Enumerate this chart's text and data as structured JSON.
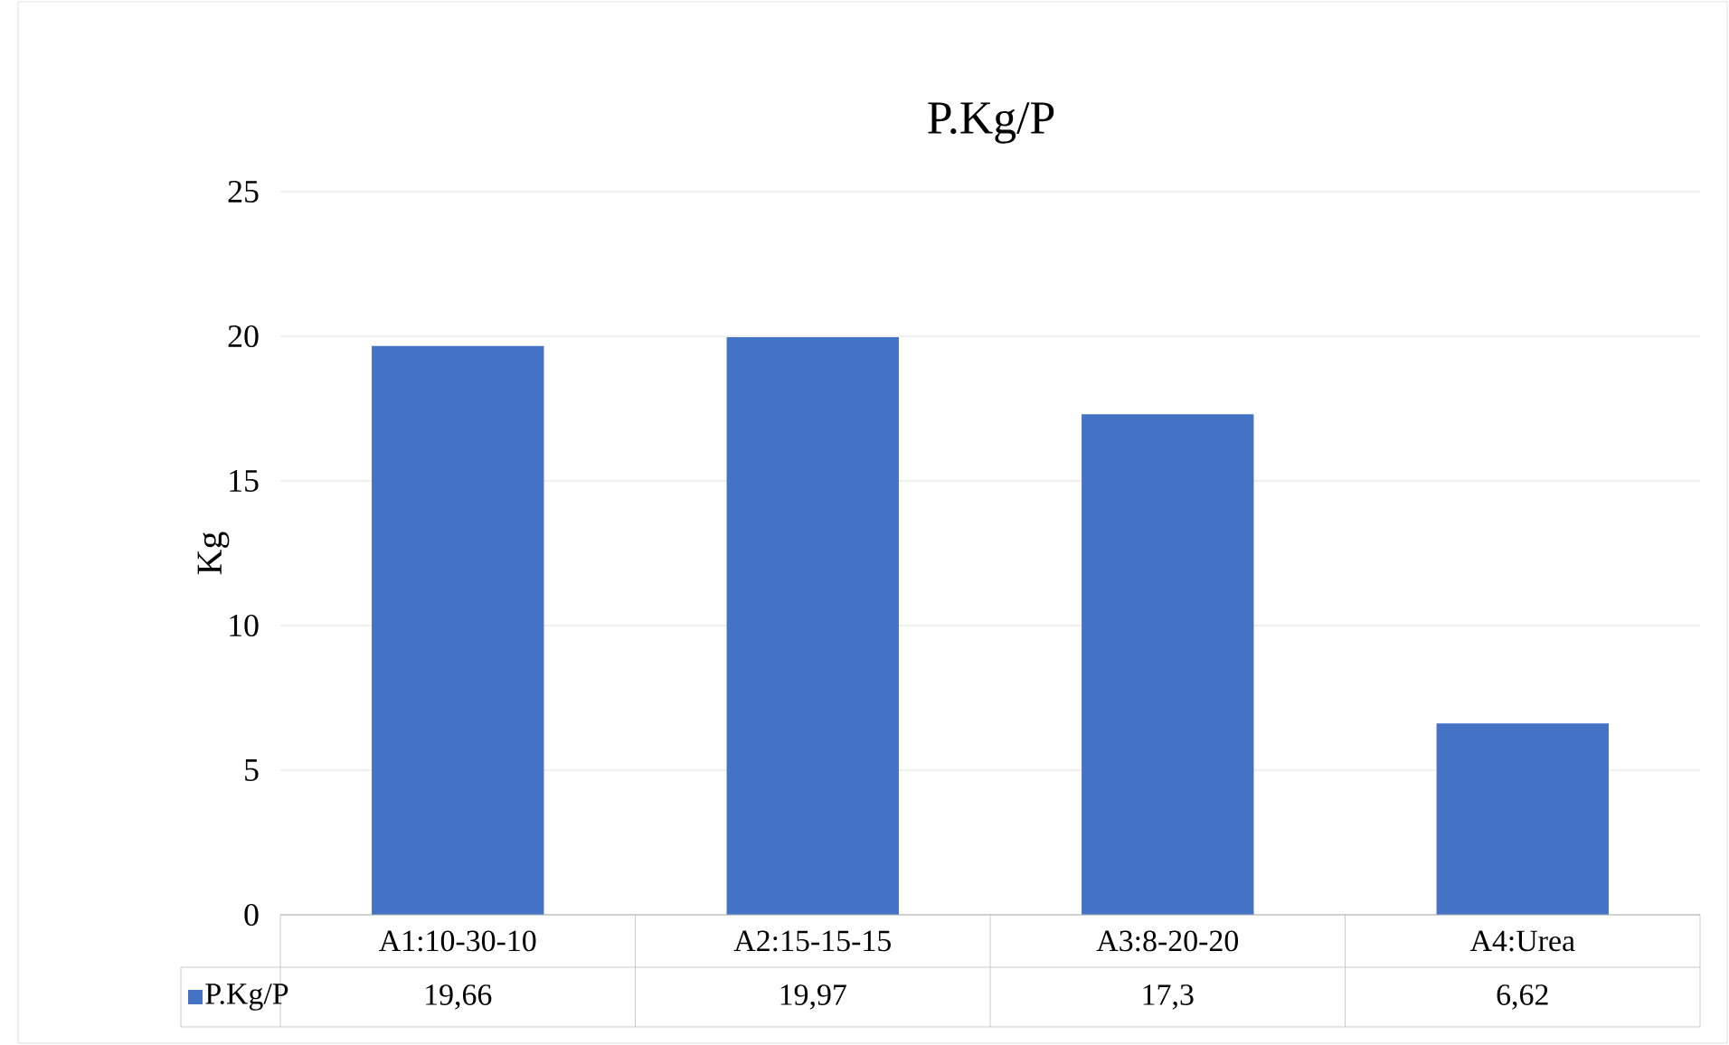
{
  "chart_data": {
    "type": "bar",
    "title": "P.Kg/P",
    "ylabel": "Kg",
    "categories": [
      "A1:10-30-10",
      "A2:15-15-15",
      "A3:8-20-20",
      "A4:Urea"
    ],
    "series": [
      {
        "name": "P.Kg/P",
        "color": "#4472c4",
        "values": [
          19.66,
          19.97,
          17.3,
          6.62
        ],
        "value_labels": [
          "19,66",
          "19,97",
          "17,3",
          "6,62"
        ]
      }
    ],
    "ylim": [
      0,
      25
    ],
    "yticks": [
      0,
      5,
      10,
      15,
      20,
      25
    ],
    "grid": "y",
    "legend": "bottom"
  }
}
